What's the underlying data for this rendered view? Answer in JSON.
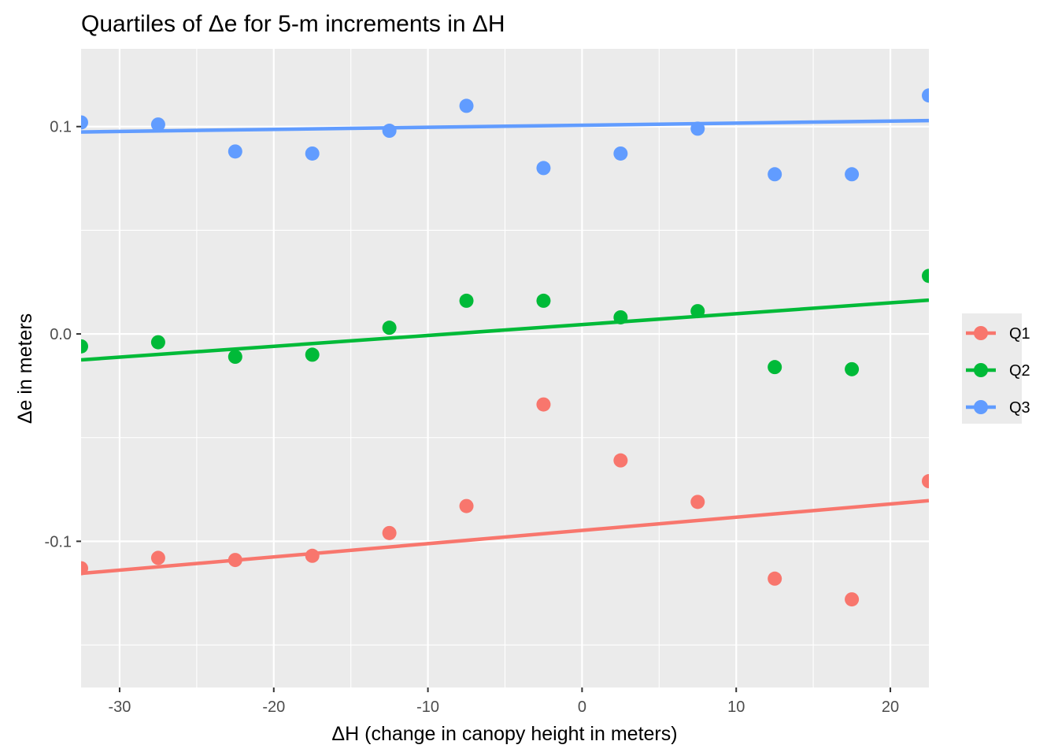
{
  "chart_data": {
    "type": "scatter",
    "title": "Quartiles of Δe for 5-m increments in ΔH",
    "xlabel": "ΔH (change in canopy height in meters)",
    "ylabel": "Δe in meters",
    "xlim": [
      -32.5,
      22.5
    ],
    "ylim": [
      -0.1705,
      0.1375
    ],
    "x_ticks": [
      -30,
      -20,
      -10,
      0,
      10,
      20
    ],
    "x_tick_labels": [
      "-30",
      "-20",
      "-10",
      "0",
      "10",
      "20"
    ],
    "y_ticks": [
      -0.1,
      0.0,
      0.1
    ],
    "y_tick_labels": [
      "-0.1",
      "0.0",
      "0.1"
    ],
    "grid": true,
    "legend_position": "right",
    "x": [
      -32.5,
      -27.5,
      -22.5,
      -17.5,
      -12.5,
      -7.5,
      -2.5,
      2.5,
      7.5,
      12.5,
      17.5,
      22.5
    ],
    "series": [
      {
        "name": "Q1",
        "color": "#F8766D",
        "values": [
          -0.113,
          -0.108,
          -0.109,
          -0.107,
          -0.096,
          -0.083,
          -0.034,
          -0.061,
          -0.081,
          -0.118,
          -0.128,
          -0.071
        ],
        "trend": [
          -0.1155,
          -0.0804
        ]
      },
      {
        "name": "Q2",
        "color": "#00BA38",
        "values": [
          -0.006,
          -0.004,
          -0.011,
          -0.01,
          0.003,
          0.016,
          0.016,
          0.008,
          0.011,
          -0.016,
          -0.017,
          0.028
        ],
        "trend": [
          -0.0125,
          0.0163
        ]
      },
      {
        "name": "Q3",
        "color": "#619CFF",
        "values": [
          0.102,
          0.101,
          0.088,
          0.087,
          0.098,
          0.11,
          0.08,
          0.087,
          0.099,
          0.077,
          0.077,
          0.115
        ],
        "trend": [
          0.0974,
          0.1029
        ]
      }
    ]
  }
}
